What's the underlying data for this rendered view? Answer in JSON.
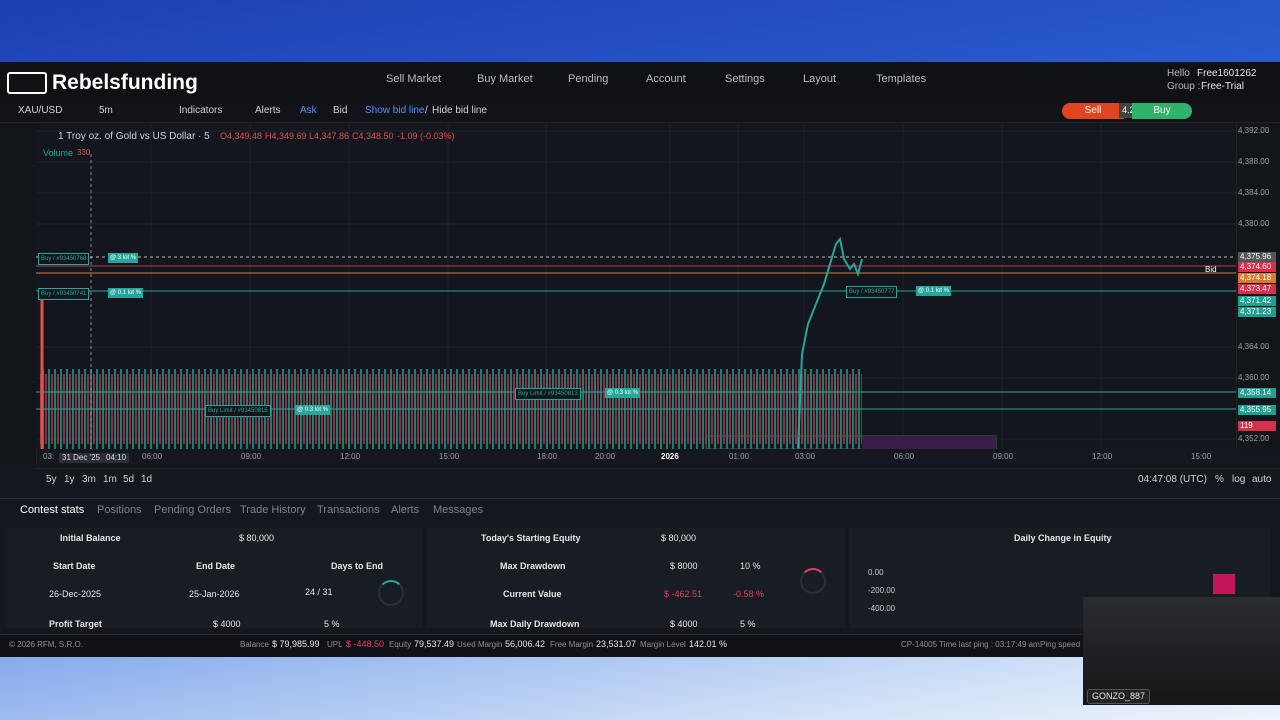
{
  "header": {
    "brand": "Rebelsfunding",
    "nav": [
      "Sell Market",
      "Buy Market",
      "Pending",
      "Account",
      "Settings",
      "Layout",
      "Templates"
    ],
    "greeting": "Hello",
    "user": "Free1601262",
    "group_label": "Group :",
    "group": "Free-Trial"
  },
  "toolbar": {
    "symbol": "XAU/USD",
    "interval": "5m",
    "indicators": "Indicators",
    "alerts": "Alerts",
    "ask": "Ask",
    "bid": "Bid",
    "show_bid_line": "Show bid line",
    "separator": "/",
    "hide_bid_line": "Hide bid line",
    "sell": "Sell",
    "spread": "4.2",
    "buy": "Buy"
  },
  "chart": {
    "title": "1 Troy oz. of Gold vs US Dollar · 5",
    "open": "O4,349.48",
    "high": "H4,349.69",
    "low": "L4,347.86",
    "close": "C4,348.50",
    "change": "-1.09 (-0.03%)",
    "volume_label": "Volume",
    "volume": "330",
    "bid_tag": "Bid",
    "price_axis": [
      "4,392.00",
      "4,388.00",
      "4,384.00",
      "4,380.00",
      "4,375.96",
      "4,374.60",
      "4,374.18",
      "4,373.47",
      "4,371.42",
      "4,371.23",
      "4,364.00",
      "4,360.00",
      "4,358.14",
      "4,355.95",
      "119",
      "4,352.00"
    ],
    "time_axis": [
      "03:",
      "31 Dec '25",
      "04:10",
      "06:00",
      "09:00",
      "12:00",
      "15:00",
      "18:00",
      "20:00",
      "2026",
      "01:00",
      "03:00",
      "06:00",
      "09:00",
      "12:00",
      "15:00"
    ],
    "orders": [
      {
        "label": "Buy / #93450768",
        "lots": "@ 3 lot %"
      },
      {
        "label": "Buy / #93450741",
        "lots": "@ 0.1 lot %"
      },
      {
        "label": "Buy / #93450777",
        "lots": "@ 0.1 lot %"
      },
      {
        "label": "Buy Limit / #93450815",
        "lots": "@ 0.3 lot %"
      },
      {
        "label": "Buy Limit / #93450813",
        "lots": "@ 0.3 lot %"
      }
    ],
    "ranges": [
      "5y",
      "1y",
      "3m",
      "1m",
      "5d",
      "1d"
    ],
    "clock": "04:47:08 (UTC)",
    "scale_options": [
      "%",
      "log",
      "auto"
    ]
  },
  "tabs": [
    "Contest stats",
    "Positions",
    "Pending Orders",
    "Trade History",
    "Transactions",
    "Alerts",
    "Messages"
  ],
  "stats": {
    "initial_balance_label": "Initial Balance",
    "initial_balance": "$ 80,000",
    "start_date_label": "Start Date",
    "end_date_label": "End Date",
    "days_to_end_label": "Days to End",
    "start_date": "26-Dec-2025",
    "end_date": "25-Jan-2026",
    "days_to_end": "24 / 31",
    "profit_target_label": "Profit Target",
    "profit_target": "$ 4000",
    "profit_target_pct": "5 %",
    "starting_equity_label": "Today's Starting Equity",
    "starting_equity": "$ 80,000",
    "max_drawdown_label": "Max Drawdown",
    "max_drawdown": "$ 8000",
    "max_drawdown_pct": "10 %",
    "current_value_label": "Current Value",
    "current_value": "$ -462.51",
    "current_value_pct": "-0.58 %",
    "max_daily_drawdown_label": "Max Daily Drawdown",
    "max_daily_drawdown": "$ 4000",
    "max_daily_drawdown_pct": "5 %",
    "daily_change_title": "Daily Change in Equity",
    "daily_change_axis": [
      "0.00",
      "-200.00",
      "-400.00"
    ]
  },
  "footer": {
    "copyright": "© 2026 RFM, S.R.O.",
    "balance_label": "Balance",
    "balance": "$ 79,985.99",
    "upl_label": "UPL",
    "upl": "$ -448.50",
    "equity_label": "Equity",
    "equity": "79,537.49",
    "used_margin_label": "Used Margin",
    "used_margin": "56,006.42",
    "free_margin_label": "Free Margin",
    "free_margin": "23,531.07",
    "margin_level_label": "Margin Level",
    "margin_level": "142.01 %",
    "ping": "CP-14005 Time last ping : 03:17:49 am",
    "ping_speed": "Ping speed"
  },
  "webcam": {
    "name": "GONZO_887"
  }
}
